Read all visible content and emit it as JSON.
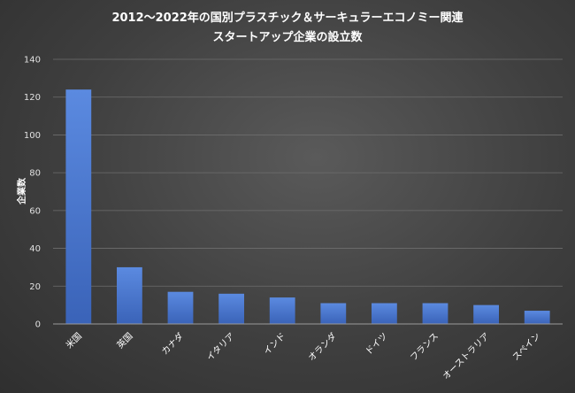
{
  "chart_data": {
    "type": "bar",
    "title_lines": [
      "2012～2022年の国別プラスチック＆サーキュラーエコノミー関連",
      "スタートアップ企業の設立数"
    ],
    "ylabel": "企業数",
    "xlabel": "",
    "ylim": [
      0,
      140
    ],
    "yticks": [
      0,
      20,
      40,
      60,
      80,
      100,
      120,
      140
    ],
    "grid": true,
    "bar_color": "#4472c4",
    "categories": [
      "米国",
      "英国",
      "カナダ",
      "イタリア",
      "インド",
      "オランダ",
      "ドイツ",
      "フランス",
      "オーストラリア",
      "スペイン"
    ],
    "values": [
      124,
      30,
      17,
      16,
      14,
      11,
      11,
      11,
      10,
      7
    ]
  }
}
